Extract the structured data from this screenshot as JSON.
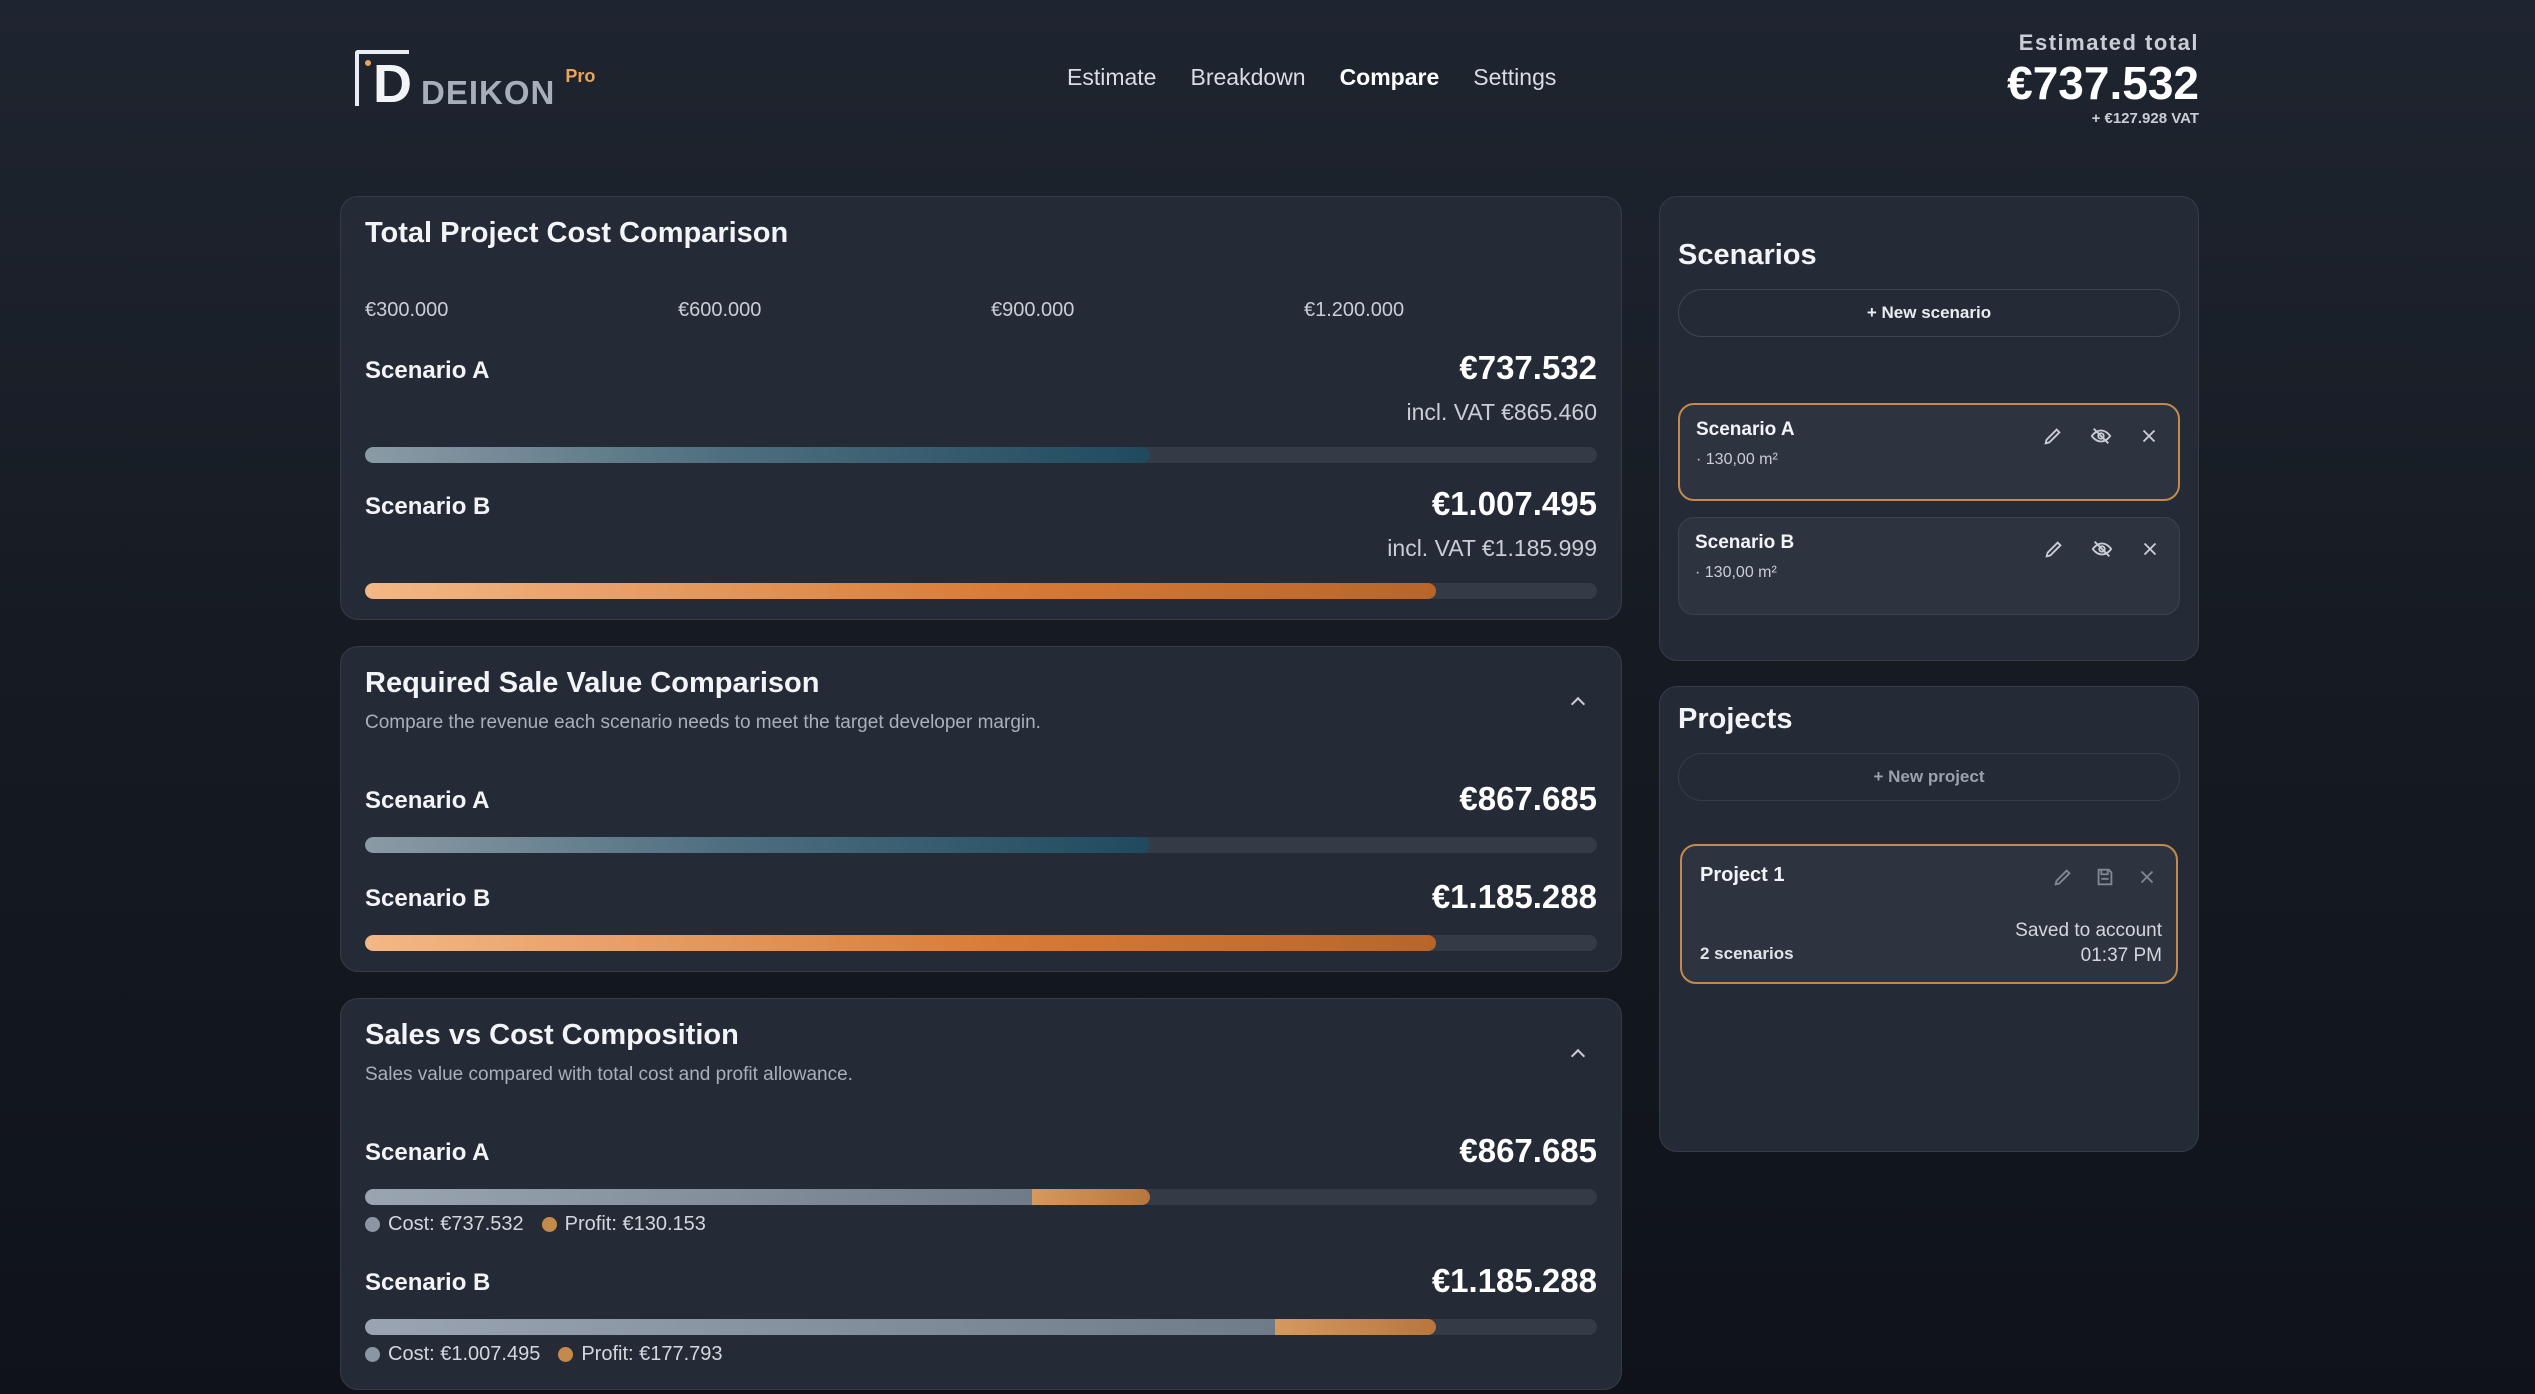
{
  "brand": {
    "mark_letter": "D",
    "name": "DEIKON",
    "tier": "Pro"
  },
  "nav": {
    "items": [
      {
        "label": "Estimate",
        "active": false
      },
      {
        "label": "Breakdown",
        "active": false
      },
      {
        "label": "Compare",
        "active": true
      },
      {
        "label": "Settings",
        "active": false
      }
    ]
  },
  "estimate": {
    "label": "Estimated total",
    "value": "€737.532",
    "vat": "+ €127.928 VAT"
  },
  "cost_comparison": {
    "title": "Total Project Cost Comparison",
    "axis_ticks": [
      "€300.000",
      "€600.000",
      "€900.000",
      "€1.200.000"
    ],
    "rows": [
      {
        "label": "Scenario A",
        "value": "€737.532",
        "vat": "incl. VAT €865.460",
        "fraction": 0.637
      },
      {
        "label": "Scenario B",
        "value": "€1.007.495",
        "vat": "incl. VAT €1.185.999",
        "fraction": 0.869
      }
    ]
  },
  "sale_value": {
    "title": "Required Sale Value Comparison",
    "subtitle": "Compare the revenue each scenario needs to meet the target developer margin.",
    "rows": [
      {
        "label": "Scenario A",
        "value": "€867.685",
        "fraction": 0.637
      },
      {
        "label": "Scenario B",
        "value": "€1.185.288",
        "fraction": 0.869
      }
    ]
  },
  "composition": {
    "title": "Sales vs Cost Composition",
    "subtitle": "Sales value compared with total cost and profit allowance.",
    "rows": [
      {
        "label": "Scenario A",
        "value": "€867.685",
        "cost_fraction": 0.541,
        "total_fraction": 0.637,
        "cost_label": "Cost: €737.532",
        "profit_label": "Profit: €130.153"
      },
      {
        "label": "Scenario B",
        "value": "€1.185.288",
        "cost_fraction": 0.739,
        "total_fraction": 0.869,
        "cost_label": "Cost: €1.007.495",
        "profit_label": "Profit: €177.793"
      }
    ]
  },
  "scenarios": {
    "title": "Scenarios",
    "new_label": "+ New scenario",
    "items": [
      {
        "name": "Scenario A",
        "area": "· 130,00 m²",
        "selected": true
      },
      {
        "name": "Scenario B",
        "area": "· 130,00 m²",
        "selected": false
      }
    ],
    "icons": [
      "pencil-icon",
      "eye-off-icon",
      "close-icon"
    ]
  },
  "projects": {
    "title": "Projects",
    "new_label": "+ New project",
    "items": [
      {
        "name": "Project 1",
        "count": "2 scenarios",
        "status_line1": "Saved to account",
        "status_line2": "01:37 PM"
      }
    ],
    "icons": [
      "pencil-icon",
      "save-icon",
      "close-icon"
    ]
  },
  "colors": {
    "accent_orange": "#c48a4c",
    "accent_teal": "#1f4a5e",
    "card_bg": "#252b36"
  }
}
